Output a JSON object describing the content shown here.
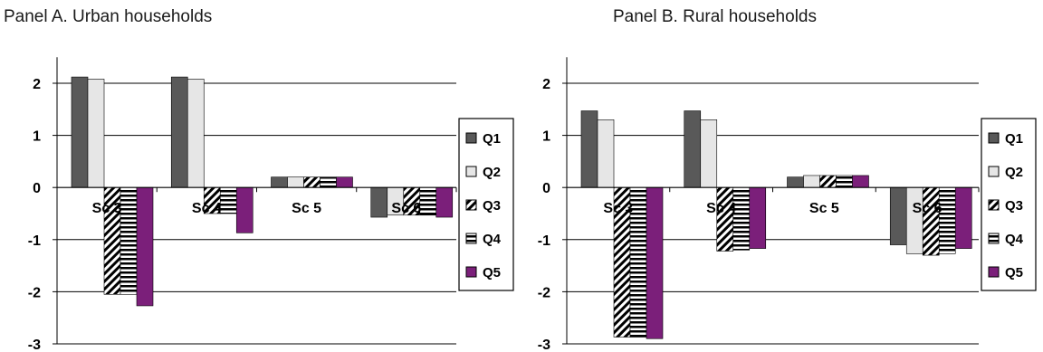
{
  "panels": [
    {
      "title": "Panel A. Urban households"
    },
    {
      "title": "Panel B. Rural households"
    }
  ],
  "colors": {
    "Q1": "#595959",
    "Q2": "#e6e6e6",
    "Q3": "#000000",
    "Q4": "#000000",
    "Q5": "#7b1f7a",
    "grid": "#000000"
  },
  "chart_data": [
    {
      "type": "bar",
      "title": "Panel A. Urban households",
      "categories": [
        "Sc 3",
        "Sc 4",
        "Sc 5",
        "Sc 6"
      ],
      "ylim": [
        -3,
        2.5
      ],
      "yticks": [
        -3,
        -2,
        -1,
        0,
        1,
        2
      ],
      "grid": true,
      "legend": "right",
      "series": [
        {
          "name": "Q1",
          "values": [
            2.12,
            2.12,
            0.2,
            -0.57
          ]
        },
        {
          "name": "Q2",
          "values": [
            2.08,
            2.08,
            0.2,
            -0.53
          ]
        },
        {
          "name": "Q3",
          "values": [
            -2.05,
            -0.5,
            0.2,
            -0.53
          ]
        },
        {
          "name": "Q4",
          "values": [
            -2.05,
            -0.5,
            0.2,
            -0.53
          ]
        },
        {
          "name": "Q5",
          "values": [
            -2.27,
            -0.87,
            0.2,
            -0.57
          ]
        }
      ]
    },
    {
      "type": "bar",
      "title": "Panel B. Rural households",
      "categories": [
        "Sc 3",
        "Sc 4",
        "Sc 5",
        "Sc 6"
      ],
      "ylim": [
        -3,
        2.5
      ],
      "yticks": [
        -3,
        -2,
        -1,
        0,
        1,
        2
      ],
      "grid": true,
      "legend": "right",
      "series": [
        {
          "name": "Q1",
          "values": [
            1.47,
            1.47,
            0.2,
            -1.1
          ]
        },
        {
          "name": "Q2",
          "values": [
            1.3,
            1.3,
            0.23,
            -1.27
          ]
        },
        {
          "name": "Q3",
          "values": [
            -2.87,
            -1.22,
            0.23,
            -1.3
          ]
        },
        {
          "name": "Q4",
          "values": [
            -2.87,
            -1.2,
            0.23,
            -1.27
          ]
        },
        {
          "name": "Q5",
          "values": [
            -2.9,
            -1.17,
            0.23,
            -1.17
          ]
        }
      ]
    }
  ]
}
